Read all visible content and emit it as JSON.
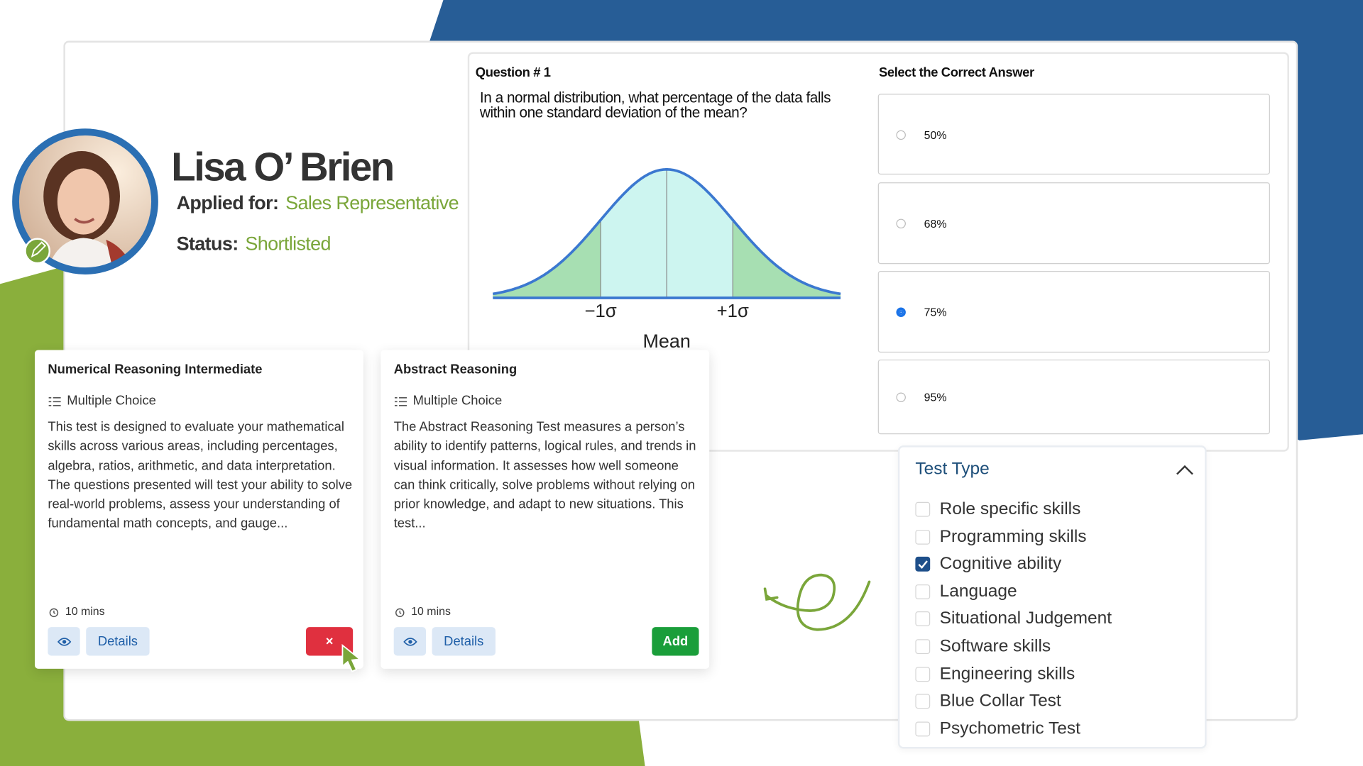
{
  "candidate": {
    "name": "Lisa O’ Brien",
    "applied_for_label": "Applied for:",
    "applied_for": "Sales Representative",
    "status_label": "Status:",
    "status": "Shortlisted"
  },
  "question": {
    "title": "Question # 1",
    "text": "In a normal distribution, what percentage of the data falls within one standard deviation of the mean?",
    "chart_labels": {
      "minus": "−1σ",
      "plus": "+1σ",
      "mean": "Mean"
    }
  },
  "answers": {
    "title": "Select the Correct Answer",
    "options": [
      "50%",
      "68%",
      "75%",
      "95%"
    ],
    "selected": 2
  },
  "tests": [
    {
      "title": "Numerical Reasoning Intermediate",
      "format": "Multiple Choice",
      "description": "This test is designed to evaluate your mathematical skills across various areas, including percentages, algebra, ratios, arithmetic, and data interpretation. The questions presented will test your ability to solve real-world problems, assess your understanding of fundamental math concepts, and gauge...",
      "duration": "10 mins",
      "details": "Details",
      "action": "×"
    },
    {
      "title": "Abstract Reasoning",
      "format": "Multiple Choice",
      "description": "The Abstract Reasoning Test measures a person’s ability to identify patterns, logical rules, and trends in visual information. It assesses how well someone can think critically, solve problems without relying on prior knowledge, and adapt to new situations. This test...",
      "duration": "10 mins",
      "details": "Details",
      "action": "Add"
    }
  ],
  "filter": {
    "title": "Test Type",
    "options": [
      {
        "label": "Role specific skills",
        "checked": false
      },
      {
        "label": "Programming skills",
        "checked": false
      },
      {
        "label": "Cognitive ability",
        "checked": true
      },
      {
        "label": "Language",
        "checked": false
      },
      {
        "label": "Situational Judgement",
        "checked": false
      },
      {
        "label": "Software skills",
        "checked": false
      },
      {
        "label": "Engineering skills",
        "checked": false
      },
      {
        "label": "Blue Collar Test",
        "checked": false
      },
      {
        "label": "Psychometric Test",
        "checked": false
      }
    ]
  }
}
